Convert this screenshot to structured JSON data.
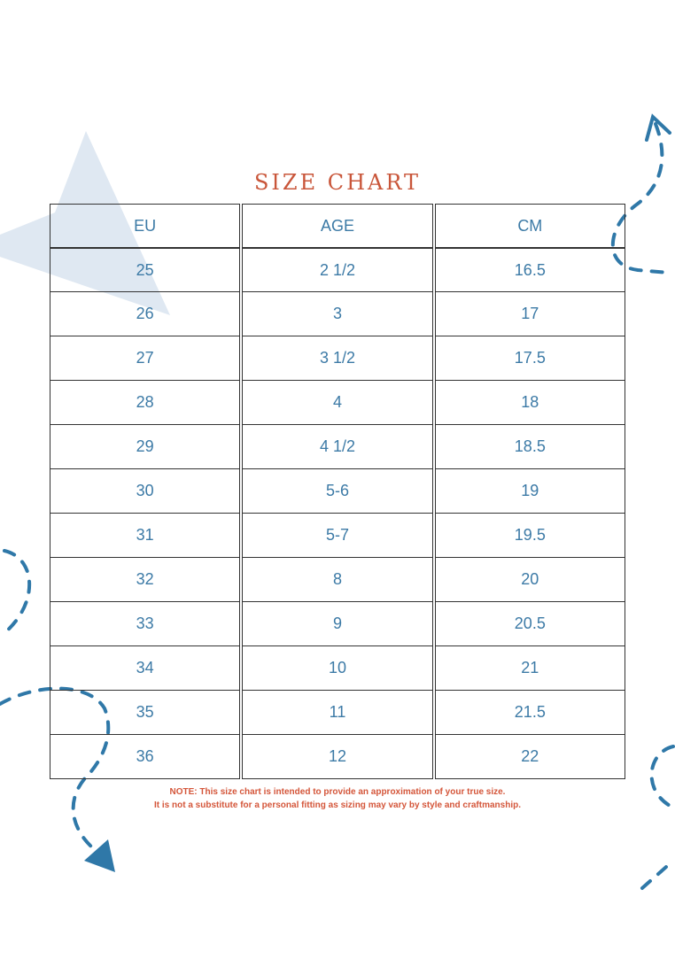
{
  "title": "SIZE CHART",
  "colors": {
    "title": "#c9563a",
    "text": "#3c7aa6",
    "accent": "#2f78a8",
    "triangle": "#dfe8f2",
    "note": "#d4563a"
  },
  "table": {
    "headers": [
      "EU",
      "AGE",
      "CM"
    ],
    "rows": [
      [
        "25",
        "2 1/2",
        "16.5"
      ],
      [
        "26",
        "3",
        "17"
      ],
      [
        "27",
        "3 1/2",
        "17.5"
      ],
      [
        "28",
        "4",
        "18"
      ],
      [
        "29",
        "4 1/2",
        "18.5"
      ],
      [
        "30",
        "5-6",
        "19"
      ],
      [
        "31",
        "5-7",
        "19.5"
      ],
      [
        "32",
        "8",
        "20"
      ],
      [
        "33",
        "9",
        "20.5"
      ],
      [
        "34",
        "10",
        "21"
      ],
      [
        "35",
        "11",
        "21.5"
      ],
      [
        "36",
        "12",
        "22"
      ]
    ]
  },
  "note": {
    "line1": "NOTE: This size chart is intended to provide an approximation of your true size.",
    "line2": "It is not a substitute for a personal fitting as sizing may vary by style and craftmanship."
  }
}
